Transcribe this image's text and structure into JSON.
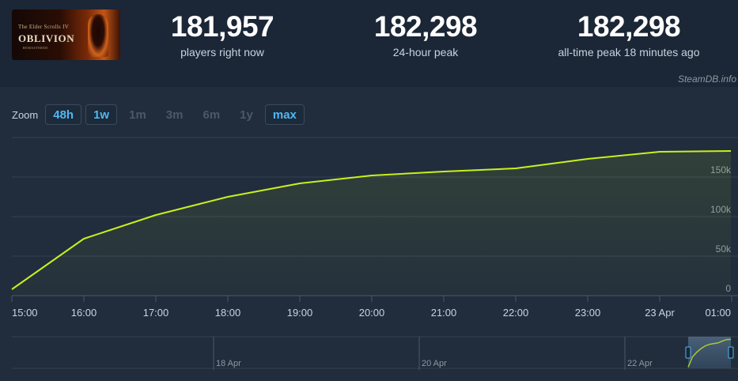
{
  "game": {
    "cover_series": "The Elder Scrolls IV",
    "cover_title": "OBLIVION",
    "cover_sub": "REMASTERED"
  },
  "stats": [
    {
      "value": "181,957",
      "label": "players right now"
    },
    {
      "value": "182,298",
      "label": "24-hour peak"
    },
    {
      "value": "182,298",
      "label": "all-time peak 18 minutes ago"
    }
  ],
  "credit": "SteamDB.info",
  "zoom": {
    "label": "Zoom",
    "options": [
      {
        "label": "48h",
        "enabled": true
      },
      {
        "label": "1w",
        "enabled": true
      },
      {
        "label": "1m",
        "enabled": false
      },
      {
        "label": "3m",
        "enabled": false
      },
      {
        "label": "6m",
        "enabled": false
      },
      {
        "label": "1y",
        "enabled": false
      },
      {
        "label": "max",
        "enabled": true
      }
    ]
  },
  "colors": {
    "line": "#c8f01c",
    "grid": "#35414f",
    "navigator_line": "#a6c83a"
  },
  "chart_data": {
    "type": "line",
    "title": "",
    "xlabel": "",
    "ylabel": "",
    "x_ticks": [
      "15:00",
      "16:00",
      "17:00",
      "18:00",
      "19:00",
      "20:00",
      "21:00",
      "22:00",
      "23:00",
      "23 Apr",
      "01:00"
    ],
    "y_ticks": [
      0,
      50000,
      100000,
      150000
    ],
    "y_tick_labels": [
      "0",
      "50k",
      "100k",
      "150k"
    ],
    "ylim": [
      0,
      200000
    ],
    "grid": true,
    "legend": "none",
    "series": [
      {
        "x": [
          "15:00",
          "16:00",
          "17:00",
          "18:00",
          "19:00",
          "20:00",
          "21:00",
          "22:00",
          "23:00",
          "23 Apr",
          "01:00"
        ],
        "values": [
          8000,
          72000,
          102000,
          125000,
          142000,
          152000,
          157000,
          161000,
          173000,
          182000,
          183000
        ]
      }
    ],
    "navigator": {
      "ticks": [
        "18 Apr",
        "20 Apr",
        "22 Apr"
      ]
    }
  }
}
